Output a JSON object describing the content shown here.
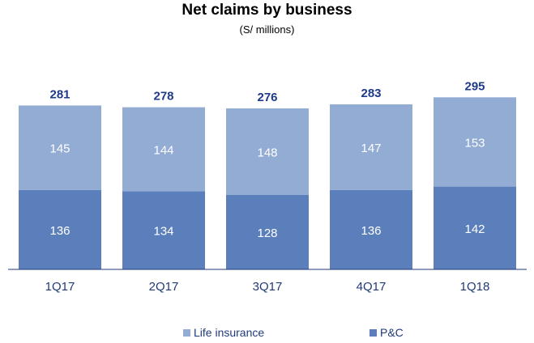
{
  "chart_data": {
    "type": "bar",
    "stacked": true,
    "title": "Net claims by business",
    "subtitle": "(S/ millions)",
    "categories": [
      "1Q17",
      "2Q17",
      "3Q17",
      "4Q17",
      "1Q18"
    ],
    "series": [
      {
        "name": "P&C",
        "values": [
          136,
          134,
          128,
          136,
          142
        ],
        "color": "#5b7fbb"
      },
      {
        "name": "Life insurance",
        "values": [
          145,
          144,
          148,
          147,
          153
        ],
        "color": "#93acd4"
      }
    ],
    "totals": [
      281,
      278,
      276,
      283,
      295
    ],
    "ylim": [
      0,
      320
    ],
    "grid": false,
    "legend_position": "bottom",
    "label_color": "#ffffff",
    "total_color": "#1f3a8a",
    "axis_color": "#1f3a7a"
  },
  "legend": {
    "life_label": "Life insurance",
    "pc_label": "P&C"
  }
}
